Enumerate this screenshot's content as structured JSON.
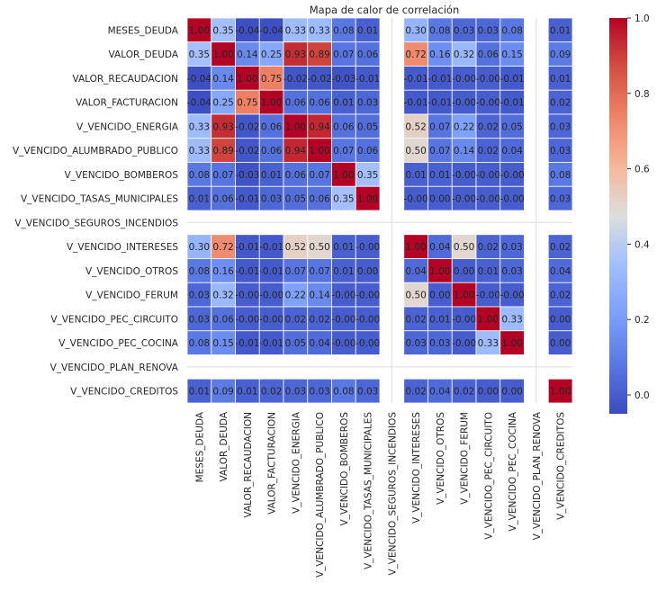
{
  "chart_data": {
    "type": "heatmap",
    "title": "Mapa de calor de correlación",
    "labels": [
      "MESES_DEUDA",
      "VALOR_DEUDA",
      "VALOR_RECAUDACION",
      "VALOR_FACTURACION",
      "V_VENCIDO_ENERGIA",
      "V_VENCIDO_ALUMBRADO_PUBLICO",
      "V_VENCIDO_BOMBEROS",
      "V_VENCIDO_TASAS_MUNICIPALES",
      "V_VENCIDO_SEGUROS_INCENDIOS",
      "V_VENCIDO_INTERESES",
      "V_VENCIDO_OTROS",
      "V_VENCIDO_FERUM",
      "V_VENCIDO_PEC_CIRCUITO",
      "V_VENCIDO_PEC_COCINA",
      "V_VENCIDO_PLAN_RENOVA",
      "V_VENCIDO_CREDITOS"
    ],
    "cell_labels": [
      [
        "1.00",
        "0.35",
        "-0.04",
        "-0.04",
        "0.33",
        "0.33",
        "0.08",
        "0.01",
        null,
        "0.30",
        "0.08",
        "0.03",
        "0.03",
        "0.08",
        null,
        "0.01"
      ],
      [
        "0.35",
        "1.00",
        "0.14",
        "0.25",
        "0.93",
        "0.89",
        "0.07",
        "0.06",
        null,
        "0.72",
        "0.16",
        "0.32",
        "0.06",
        "0.15",
        null,
        "0.09"
      ],
      [
        "-0.04",
        "0.14",
        "1.00",
        "0.75",
        "-0.02",
        "-0.02",
        "-0.03",
        "-0.01",
        null,
        "-0.01",
        "-0.01",
        "-0.00",
        "-0.00",
        "-0.01",
        null,
        "0.01"
      ],
      [
        "-0.04",
        "0.25",
        "0.75",
        "1.00",
        "0.06",
        "0.06",
        "0.01",
        "0.03",
        null,
        "-0.01",
        "-0.01",
        "-0.00",
        "-0.00",
        "-0.01",
        null,
        "0.02"
      ],
      [
        "0.33",
        "0.93",
        "-0.02",
        "0.06",
        "1.00",
        "0.94",
        "0.06",
        "0.05",
        null,
        "0.52",
        "0.07",
        "0.22",
        "0.02",
        "0.05",
        null,
        "0.03"
      ],
      [
        "0.33",
        "0.89",
        "-0.02",
        "0.06",
        "0.94",
        "1.00",
        "0.07",
        "0.06",
        null,
        "0.50",
        "0.07",
        "0.14",
        "0.02",
        "0.04",
        null,
        "0.03"
      ],
      [
        "0.08",
        "0.07",
        "-0.03",
        "0.01",
        "0.06",
        "0.07",
        "1.00",
        "0.35",
        null,
        "0.01",
        "0.01",
        "-0.00",
        "-0.00",
        "-0.00",
        null,
        "0.08"
      ],
      [
        "0.01",
        "0.06",
        "-0.01",
        "0.03",
        "0.05",
        "0.06",
        "0.35",
        "1.00",
        null,
        "-0.00",
        "0.00",
        "-0.00",
        "-0.00",
        "-0.00",
        null,
        "0.03"
      ],
      [
        null,
        null,
        null,
        null,
        null,
        null,
        null,
        null,
        null,
        null,
        null,
        null,
        null,
        null,
        null,
        null
      ],
      [
        "0.30",
        "0.72",
        "-0.01",
        "-0.01",
        "0.52",
        "0.50",
        "0.01",
        "-0.00",
        null,
        "1.00",
        "0.04",
        "0.50",
        "0.02",
        "0.03",
        null,
        "0.02"
      ],
      [
        "0.08",
        "0.16",
        "-0.01",
        "-0.01",
        "0.07",
        "0.07",
        "0.01",
        "0.00",
        null,
        "0.04",
        "1.00",
        "0.00",
        "0.01",
        "0.03",
        null,
        "0.04"
      ],
      [
        "0.03",
        "0.32",
        "-0.00",
        "-0.00",
        "0.22",
        "0.14",
        "-0.00",
        "-0.00",
        null,
        "0.50",
        "0.00",
        "1.00",
        "-0.00",
        "-0.00",
        null,
        "0.02"
      ],
      [
        "0.03",
        "0.06",
        "-0.00",
        "-0.00",
        "0.02",
        "0.02",
        "-0.00",
        "-0.00",
        null,
        "0.02",
        "0.01",
        "-0.00",
        "1.00",
        "0.33",
        null,
        "0.00"
      ],
      [
        "0.08",
        "0.15",
        "-0.01",
        "-0.01",
        "0.05",
        "0.04",
        "-0.00",
        "-0.00",
        null,
        "0.03",
        "0.03",
        "-0.00",
        "0.33",
        "1.00",
        null,
        "0.00"
      ],
      [
        null,
        null,
        null,
        null,
        null,
        null,
        null,
        null,
        null,
        null,
        null,
        null,
        null,
        null,
        null,
        null
      ],
      [
        "0.01",
        "0.09",
        "0.01",
        "0.02",
        "0.03",
        "0.03",
        "0.08",
        "0.03",
        null,
        "0.02",
        "0.04",
        "0.02",
        "0.00",
        "0.00",
        null,
        "1.00"
      ]
    ],
    "colorbar": {
      "colormap": "coolwarm",
      "vmin": -0.05,
      "vmax": 1.0,
      "ticks": [
        "0.0",
        "0.2",
        "0.4",
        "0.6",
        "0.8",
        "1.0"
      ]
    }
  },
  "colors": {
    "text_dark": "#262626",
    "text_light": "#ffffff",
    "grid_line": "#ffffff",
    "missing_cell": "#ffffff"
  }
}
